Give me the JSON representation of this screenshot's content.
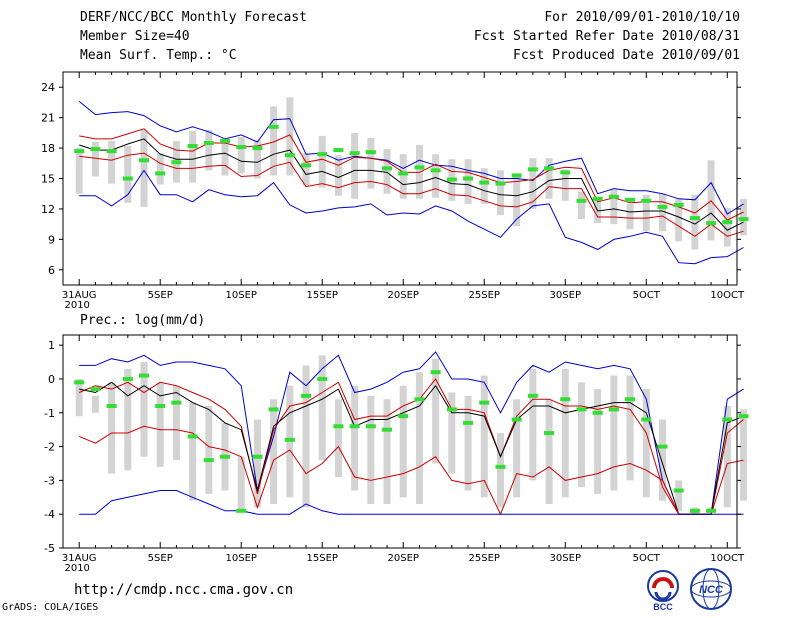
{
  "header": {
    "left": [
      "DERF/NCC/BCC Monthly Forecast",
      "Member Size=40",
      "Mean Surf. Temp.: °C"
    ],
    "right": [
      "For 2010/09/01-2010/10/10",
      "Fcst Started Refer Date 2010/08/31",
      "Fcst Produced Date 2010/09/01"
    ]
  },
  "footer": {
    "url": "http://cmdp.ncc.cma.gov.cn",
    "credit": "GrADS: COLA/IGES",
    "logos": [
      {
        "name": "bcc",
        "text": "BCC"
      },
      {
        "name": "ncc",
        "text": "NCC"
      }
    ]
  },
  "colors": {
    "mean": "#000000",
    "spread": "#cc0000",
    "extreme": "#0000cc",
    "forecast_mark": "#33dd33",
    "box": "#d3d3d3"
  },
  "chart_data": [
    {
      "type": "line",
      "title": "Mean Surf. Temp.: °C",
      "xlabel": "",
      "ylabel": "",
      "ylim": [
        4.5,
        25.5
      ],
      "yticks": [
        6,
        9,
        12,
        15,
        18,
        21,
        24
      ],
      "x_ticks": [
        {
          "day": 0,
          "label": "31AUG",
          "sub": "2010"
        },
        {
          "day": 5,
          "label": "5SEP"
        },
        {
          "day": 10,
          "label": "10SEP"
        },
        {
          "day": 15,
          "label": "15SEP"
        },
        {
          "day": 20,
          "label": "20SEP"
        },
        {
          "day": 25,
          "label": "25SEP"
        },
        {
          "day": 30,
          "label": "30SEP"
        },
        {
          "day": 35,
          "label": "5OCT"
        },
        {
          "day": 40,
          "label": "10OCT"
        }
      ],
      "x_start": 1,
      "series": [
        {
          "name": "max",
          "style": "extreme",
          "values": [
            22.6,
            21.3,
            21.5,
            21.6,
            21.2,
            20.2,
            19.6,
            20.1,
            19.6,
            18.9,
            19.3,
            18.6,
            20.8,
            20.9,
            17.4,
            17.5,
            16.8,
            17.2,
            17.0,
            16.8,
            16.0,
            16.8,
            16.3,
            16.2,
            15.8,
            15.5,
            15.0,
            15.0,
            14.8,
            16.3,
            16.7,
            17.0,
            13.5,
            14.0,
            13.8,
            13.8,
            13.5,
            13.0,
            12.9,
            14.6,
            11.5,
            12.5
          ]
        },
        {
          "name": "upper",
          "style": "spread",
          "values": [
            19.2,
            18.9,
            18.9,
            19.4,
            19.9,
            18.4,
            17.8,
            17.7,
            18.5,
            18.5,
            18.1,
            18.2,
            18.6,
            19.3,
            16.6,
            16.9,
            16.3,
            17.1,
            17.0,
            16.7,
            15.6,
            15.6,
            16.4,
            15.7,
            15.6,
            15.1,
            14.6,
            14.7,
            14.9,
            15.8,
            16.1,
            16.0,
            12.7,
            13.1,
            12.6,
            12.7,
            12.7,
            12.2,
            11.6,
            12.8,
            10.9,
            11.7
          ]
        },
        {
          "name": "mean",
          "style": "mean",
          "values": [
            18.3,
            17.8,
            17.8,
            18.4,
            18.9,
            17.4,
            16.9,
            16.9,
            17.3,
            17.5,
            16.7,
            16.6,
            17.4,
            17.8,
            15.4,
            15.7,
            15.1,
            15.8,
            15.8,
            15.6,
            14.4,
            14.6,
            15.1,
            14.5,
            14.4,
            13.8,
            13.4,
            13.3,
            13.7,
            14.8,
            15.0,
            15.0,
            11.8,
            12.0,
            11.7,
            11.8,
            11.8,
            11.2,
            10.5,
            11.6,
            9.9,
            10.7
          ]
        },
        {
          "name": "lower",
          "style": "spread",
          "values": [
            17.2,
            17.0,
            16.8,
            17.3,
            17.5,
            16.5,
            16.0,
            16.0,
            16.2,
            16.3,
            15.2,
            15.3,
            16.2,
            16.6,
            14.2,
            14.5,
            14.1,
            14.6,
            14.7,
            14.4,
            13.5,
            13.5,
            14.0,
            13.4,
            13.3,
            12.8,
            12.3,
            12.2,
            12.7,
            14.2,
            14.0,
            14.0,
            11.2,
            11.2,
            11.1,
            11.1,
            11.3,
            10.3,
            9.3,
            10.5,
            9.3,
            9.8
          ]
        },
        {
          "name": "min",
          "style": "extreme",
          "values": [
            13.3,
            13.3,
            12.3,
            13.4,
            15.8,
            13.4,
            13.4,
            12.7,
            13.9,
            13.4,
            13.2,
            13.3,
            14.6,
            12.4,
            11.6,
            11.8,
            12.1,
            12.2,
            12.5,
            11.4,
            11.6,
            11.5,
            12.3,
            11.8,
            10.8,
            10.0,
            9.2,
            11.0,
            12.3,
            12.5,
            9.2,
            8.7,
            8.0,
            9.0,
            9.3,
            9.7,
            9.3,
            6.7,
            6.6,
            7.2,
            7.3,
            8.2
          ]
        }
      ],
      "marks": [
        17.7,
        17.9,
        17.7,
        15.0,
        16.8,
        15.5,
        16.6,
        18.2,
        18.5,
        18.7,
        18.1,
        18.0,
        20.1,
        17.3,
        16.3,
        17.4,
        17.8,
        17.5,
        17.6,
        16.0,
        15.5,
        16.1,
        15.8,
        14.9,
        15.0,
        14.6,
        14.5,
        15.3,
        15.9,
        16.0,
        15.6,
        12.8,
        13.0,
        13.2,
        12.9,
        12.8,
        12.2,
        12.4,
        11.1,
        10.6,
        10.7,
        11.0
      ],
      "box_low": [
        13.5,
        15.2,
        14.5,
        12.6,
        12.2,
        14.4,
        14.6,
        14.6,
        15.8,
        15.3,
        15.5,
        15.0,
        15.3,
        15.3,
        14.3,
        14.1,
        13.3,
        13.0,
        14.0,
        13.5,
        13.0,
        13.0,
        13.1,
        12.8,
        12.5,
        12.5,
        11.4,
        10.3,
        12.0,
        13.0,
        12.8,
        11.0,
        10.6,
        10.5,
        10.0,
        9.8,
        9.8,
        8.8,
        8.0,
        8.9,
        8.3,
        9.4
      ],
      "box_high": [
        18.0,
        18.6,
        18.7,
        18.2,
        19.8,
        17.5,
        18.7,
        19.7,
        19.8,
        18.5,
        19.1,
        18.8,
        22.1,
        23.0,
        17.5,
        19.2,
        17.3,
        19.5,
        19.0,
        17.9,
        17.4,
        18.3,
        17.4,
        16.9,
        16.9,
        16.0,
        15.8,
        15.5,
        17.0,
        17.0,
        15.9,
        13.7,
        12.9,
        13.9,
        12.5,
        13.4,
        13.5,
        13.0,
        13.4,
        16.8,
        12.1,
        13.0
      ]
    },
    {
      "type": "line",
      "title": "Prec.: log(mm/d)",
      "xlabel": "",
      "ylabel": "",
      "ylim": [
        -5,
        1.3
      ],
      "yticks": [
        -5,
        -4,
        -3,
        -2,
        -1,
        0,
        1
      ],
      "x_ticks": [
        {
          "day": 0,
          "label": "31AUG",
          "sub": "2010"
        },
        {
          "day": 5,
          "label": "5SEP"
        },
        {
          "day": 10,
          "label": "10SEP"
        },
        {
          "day": 15,
          "label": "15SEP"
        },
        {
          "day": 20,
          "label": "20SEP"
        },
        {
          "day": 25,
          "label": "25SEP"
        },
        {
          "day": 30,
          "label": "30SEP"
        },
        {
          "day": 35,
          "label": "5OCT"
        },
        {
          "day": 40,
          "label": "10OCT"
        }
      ],
      "x_start": 1,
      "series": [
        {
          "name": "max",
          "style": "extreme",
          "values": [
            0.4,
            0.4,
            0.6,
            0.5,
            0.7,
            0.4,
            0.5,
            0.5,
            0.4,
            0.3,
            -0.2,
            -3.3,
            -1.7,
            0.2,
            -0.2,
            0.3,
            0.7,
            -0.4,
            -0.3,
            -0.1,
            0.2,
            0.3,
            0.8,
            0.0,
            0.0,
            -0.1,
            -1.0,
            -0.1,
            0.4,
            0.2,
            0.5,
            0.4,
            0.3,
            0.4,
            0.3,
            -0.6,
            -3.0,
            -4.0,
            -4.0,
            -4.0,
            -0.6,
            -0.3
          ]
        },
        {
          "name": "upper",
          "style": "spread",
          "values": [
            -0.4,
            -0.2,
            -0.3,
            -0.1,
            -0.4,
            -0.1,
            -0.2,
            -0.4,
            -0.6,
            -0.9,
            -1.4,
            -3.4,
            -1.5,
            -0.8,
            -0.7,
            -0.4,
            -0.1,
            -1.2,
            -1.1,
            -1.1,
            -0.8,
            -0.6,
            0.0,
            -0.9,
            -0.9,
            -1.0,
            -2.3,
            -1.1,
            -0.6,
            -0.6,
            -0.8,
            -0.8,
            -0.9,
            -0.8,
            -0.9,
            -1.6,
            -3.2,
            -4.0,
            -4.0,
            -4.0,
            -1.6,
            -1.2
          ]
        },
        {
          "name": "mean",
          "style": "mean",
          "values": [
            -0.3,
            -0.4,
            -0.1,
            -0.5,
            -0.2,
            -0.5,
            -0.4,
            -0.7,
            -0.9,
            -1.3,
            -1.5,
            -3.3,
            -1.4,
            -1.0,
            -0.8,
            -0.6,
            -0.3,
            -1.4,
            -1.2,
            -1.2,
            -1.0,
            -0.8,
            -0.2,
            -1.0,
            -1.0,
            -1.1,
            -2.3,
            -1.2,
            -0.8,
            -0.8,
            -1.0,
            -0.9,
            -0.8,
            -0.7,
            -0.7,
            -1.0,
            -2.5,
            -4.0,
            -4.0,
            -4.0,
            -1.3,
            -1.1
          ]
        },
        {
          "name": "lower",
          "style": "spread",
          "values": [
            -1.7,
            -1.9,
            -1.6,
            -1.6,
            -1.4,
            -1.5,
            -1.5,
            -1.6,
            -2.0,
            -2.1,
            -2.3,
            -3.8,
            -2.4,
            -2.1,
            -2.8,
            -2.5,
            -2.0,
            -2.9,
            -3.0,
            -2.9,
            -2.8,
            -2.6,
            -2.3,
            -3.0,
            -3.1,
            -3.0,
            -4.0,
            -2.8,
            -2.9,
            -2.6,
            -3.0,
            -2.9,
            -2.8,
            -2.6,
            -2.5,
            -2.7,
            -3.0,
            -4.0,
            -4.0,
            -4.0,
            -2.5,
            -2.4
          ]
        },
        {
          "name": "min",
          "style": "extreme",
          "values": [
            -4.0,
            -4.0,
            -3.6,
            -3.5,
            -3.4,
            -3.3,
            -3.3,
            -3.5,
            -3.7,
            -3.9,
            -3.9,
            -4.0,
            -4.0,
            -4.0,
            -3.7,
            -3.9,
            -4.0,
            -4.0,
            -4.0,
            -4.0,
            -4.0,
            -4.0,
            -4.0,
            -4.0,
            -4.0,
            -4.0,
            -4.0,
            -4.0,
            -4.0,
            -4.0,
            -4.0,
            -4.0,
            -4.0,
            -4.0,
            -4.0,
            -4.0,
            -4.0,
            -4.0,
            -4.0,
            -4.0,
            -4.0,
            -4.0
          ]
        }
      ],
      "marks": [
        -0.1,
        -0.3,
        -0.8,
        0.0,
        0.1,
        -0.8,
        -0.7,
        -1.7,
        -2.4,
        -2.3,
        -3.9,
        -2.3,
        -0.9,
        -1.8,
        -0.5,
        0.0,
        -1.4,
        -1.4,
        -1.4,
        -1.5,
        -1.1,
        -0.6,
        0.2,
        -0.9,
        -1.3,
        -0.7,
        -2.6,
        -1.2,
        -0.5,
        -1.6,
        -0.6,
        -0.9,
        -1.0,
        -0.9,
        -0.6,
        -1.2,
        -2.0,
        -3.3,
        -3.9,
        -3.9,
        -1.2,
        -1.1
      ],
      "box_low": [
        -1.1,
        -1.0,
        -2.8,
        -2.7,
        -2.3,
        -2.6,
        -2.4,
        -3.6,
        -3.4,
        -3.3,
        -3.9,
        -3.8,
        -3.7,
        -3.5,
        -3.8,
        -2.4,
        -2.9,
        -3.3,
        -3.7,
        -3.7,
        -3.5,
        -3.7,
        -2.5,
        -2.8,
        -3.3,
        -3.5,
        -3.8,
        -3.5,
        -3.0,
        -3.7,
        -3.5,
        -3.2,
        -3.4,
        -3.3,
        -3.0,
        -3.5,
        -3.6,
        -3.9,
        -4.0,
        -3.9,
        -3.8,
        -3.6
      ],
      "box_high": [
        0.0,
        -0.5,
        -0.1,
        0.3,
        0.5,
        -0.1,
        -0.2,
        -0.7,
        -0.8,
        -1.3,
        -2.3,
        -1.2,
        -0.6,
        -0.2,
        0.4,
        0.7,
        -0.6,
        -0.2,
        -0.5,
        -0.6,
        -0.2,
        0.2,
        0.6,
        -0.4,
        -0.5,
        0.1,
        -1.6,
        -0.6,
        0.3,
        -0.6,
        0.3,
        -0.1,
        -0.3,
        0.1,
        0.1,
        -0.3,
        -1.2,
        -3.0,
        -3.8,
        -3.8,
        -0.8,
        -0.9
      ]
    }
  ]
}
